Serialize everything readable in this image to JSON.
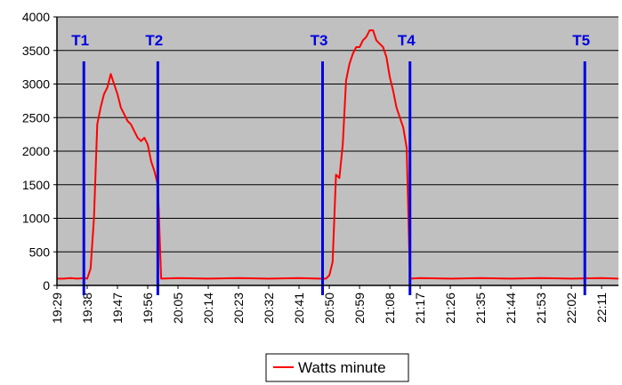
{
  "chart_data": {
    "type": "line",
    "title": "",
    "xlabel": "",
    "ylabel": "",
    "ylim": [
      0,
      4000
    ],
    "yticks": [
      0,
      500,
      1000,
      1500,
      2000,
      2500,
      3000,
      3500,
      4000
    ],
    "x_tick_labels": [
      "19:29",
      "19:38",
      "19:47",
      "19:56",
      "20:05",
      "20:14",
      "20:23",
      "20:32",
      "20:41",
      "20:50",
      "20:59",
      "21:08",
      "21:17",
      "21:26",
      "21:35",
      "21:44",
      "21:53",
      "22:02",
      "22:11"
    ],
    "x_range_minutes": [
      "19:29",
      "22:16"
    ],
    "grid": "horizontal",
    "background": "#c0c0c0",
    "legend": {
      "position": "bottom",
      "entries": [
        "Watts minute"
      ]
    },
    "series": [
      {
        "name": "Watts minute",
        "color": "#ff0000",
        "points": [
          [
            "19:29",
            100
          ],
          [
            "19:31",
            100
          ],
          [
            "19:33",
            110
          ],
          [
            "19:35",
            100
          ],
          [
            "19:37",
            110
          ],
          [
            "19:38",
            100
          ],
          [
            "19:39",
            250
          ],
          [
            "19:40",
            1000
          ],
          [
            "19:41",
            2400
          ],
          [
            "19:42",
            2650
          ],
          [
            "19:43",
            2850
          ],
          [
            "19:44",
            2950
          ],
          [
            "19:45",
            3150
          ],
          [
            "19:46",
            3000
          ],
          [
            "19:47",
            2850
          ],
          [
            "19:48",
            2650
          ],
          [
            "19:49",
            2550
          ],
          [
            "19:50",
            2450
          ],
          [
            "19:51",
            2400
          ],
          [
            "19:52",
            2300
          ],
          [
            "19:53",
            2200
          ],
          [
            "19:54",
            2150
          ],
          [
            "19:55",
            2200
          ],
          [
            "19:56",
            2100
          ],
          [
            "19:57",
            1850
          ],
          [
            "19:58",
            1700
          ],
          [
            "19:59",
            1500
          ],
          [
            "20:00",
            100
          ],
          [
            "20:05",
            110
          ],
          [
            "20:14",
            100
          ],
          [
            "20:23",
            110
          ],
          [
            "20:32",
            100
          ],
          [
            "20:41",
            110
          ],
          [
            "20:47",
            100
          ],
          [
            "20:49",
            100
          ],
          [
            "20:50",
            150
          ],
          [
            "20:51",
            350
          ],
          [
            "20:52",
            1650
          ],
          [
            "20:53",
            1600
          ],
          [
            "20:54",
            2100
          ],
          [
            "20:55",
            3050
          ],
          [
            "20:56",
            3300
          ],
          [
            "20:57",
            3450
          ],
          [
            "20:58",
            3550
          ],
          [
            "20:59",
            3550
          ],
          [
            "21:00",
            3650
          ],
          [
            "21:01",
            3700
          ],
          [
            "21:02",
            3800
          ],
          [
            "21:03",
            3800
          ],
          [
            "21:04",
            3650
          ],
          [
            "21:05",
            3600
          ],
          [
            "21:06",
            3550
          ],
          [
            "21:07",
            3400
          ],
          [
            "21:08",
            3100
          ],
          [
            "21:09",
            2900
          ],
          [
            "21:10",
            2650
          ],
          [
            "21:11",
            2500
          ],
          [
            "21:12",
            2350
          ],
          [
            "21:13",
            2050
          ],
          [
            "21:14",
            100
          ],
          [
            "21:17",
            110
          ],
          [
            "21:26",
            100
          ],
          [
            "21:35",
            110
          ],
          [
            "21:44",
            100
          ],
          [
            "21:53",
            110
          ],
          [
            "22:02",
            100
          ],
          [
            "22:11",
            110
          ],
          [
            "22:16",
            100
          ]
        ]
      }
    ],
    "markers": [
      {
        "label": "T1",
        "time": "19:37",
        "color": "#0000e0"
      },
      {
        "label": "T2",
        "time": "19:59",
        "color": "#0000e0"
      },
      {
        "label": "T3",
        "time": "20:48",
        "color": "#0000e0"
      },
      {
        "label": "T4",
        "time": "21:14",
        "color": "#0000e0"
      },
      {
        "label": "T5",
        "time": "22:06",
        "color": "#0000e0"
      }
    ]
  }
}
